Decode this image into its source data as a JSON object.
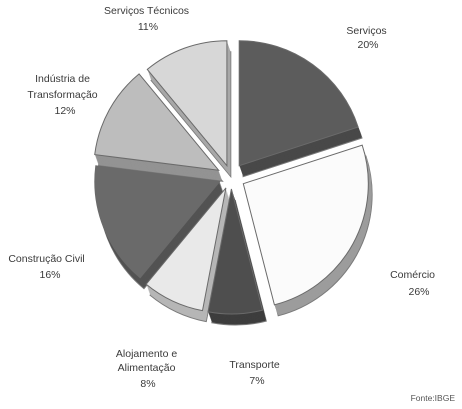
{
  "chart_data": {
    "type": "pie",
    "title": "",
    "slices": [
      {
        "label": "Serviços",
        "value": 20,
        "display": "20%",
        "color": "#5c5c5c"
      },
      {
        "label": "Comércio",
        "value": 26,
        "display": "26%",
        "color": "#fbfbfb"
      },
      {
        "label": "Transporte",
        "value": 7,
        "display": "7%",
        "color": "#4e4e4e"
      },
      {
        "label": "Alojamento e Alimentação",
        "value": 8,
        "display": "8%",
        "color": "#e9e9e9"
      },
      {
        "label": "Construção Civil",
        "value": 16,
        "display": "16%",
        "color": "#6a6a6a"
      },
      {
        "label": "Indústria de Transformação",
        "value": 12,
        "display": "12%",
        "color": "#bdbdbd"
      },
      {
        "label": "Serviços Técnicos",
        "value": 11,
        "display": "11%",
        "color": "#d7d7d7"
      }
    ],
    "source": "Fonte:IBGE"
  }
}
